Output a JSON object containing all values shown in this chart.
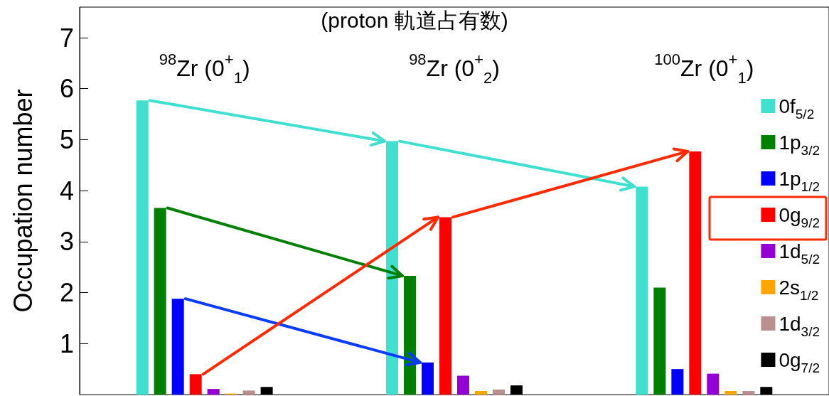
{
  "chart_data": {
    "type": "bar",
    "title": "(proton 軌道占有数)",
    "ylabel": "Occupation number",
    "categories": [
      "$^{98}$Zr (0$^{+}$$_{1}$)",
      "$^{98}$Zr (0$^{+}$$_{2}$)",
      "$^{100}$Zr (0$^{+}$$_{1}$)"
    ],
    "series": [
      {
        "name": "0f$_{5/2}$",
        "color": "#40e0d0",
        "values": [
          5.77,
          4.97,
          4.08
        ]
      },
      {
        "name": "1p$_{3/2}$",
        "color": "#008000",
        "values": [
          3.66,
          2.33,
          2.1
        ]
      },
      {
        "name": "1p$_{1/2}$",
        "color": "#0000ff",
        "values": [
          1.88,
          0.63,
          0.5
        ]
      },
      {
        "name": "0g$_{9/2}$",
        "color": "#ff0000",
        "values": [
          0.4,
          3.48,
          4.77
        ]
      },
      {
        "name": "1d$_{5/2}$",
        "color": "#9400d3",
        "values": [
          0.11,
          0.37,
          0.41
        ]
      },
      {
        "name": "2s$_{1/2}$",
        "color": "#ffa500",
        "values": [
          0.02,
          0.07,
          0.07
        ]
      },
      {
        "name": "1d$_{3/2}$",
        "color": "#bc8f8f",
        "values": [
          0.08,
          0.1,
          0.07
        ]
      },
      {
        "name": "0g$_{7/2}$",
        "color": "#000000",
        "values": [
          0.15,
          0.18,
          0.15
        ]
      }
    ],
    "ylim": [
      0,
      7.6
    ],
    "yticks": [
      1,
      2,
      3,
      4,
      5,
      6,
      7
    ],
    "grid": false,
    "legend": "right"
  }
}
